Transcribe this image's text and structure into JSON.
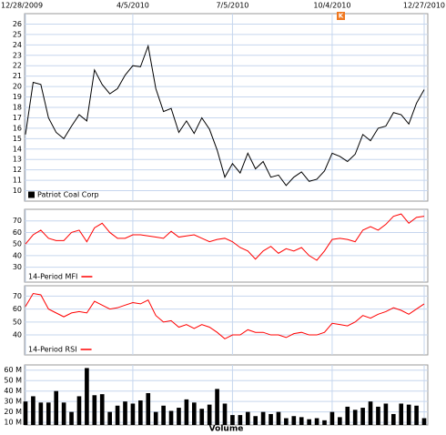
{
  "chart_data": [
    {
      "type": "line",
      "annotation": "K",
      "categories": [
        "12/28/2009",
        null,
        null,
        null,
        null,
        null,
        null,
        null,
        null,
        null,
        null,
        null,
        null,
        null,
        "4/5/2010",
        null,
        null,
        null,
        null,
        null,
        null,
        null,
        null,
        null,
        null,
        null,
        null,
        "7/5/2010",
        null,
        null,
        null,
        null,
        null,
        null,
        null,
        null,
        null,
        null,
        null,
        null,
        "10/4/2010",
        null,
        null,
        null,
        null,
        null,
        null,
        null,
        null,
        null,
        null,
        null,
        "12/27/2010"
      ],
      "series": [
        {
          "name": "Patriot Coal Corp",
          "color": "#000000",
          "legend_symbol": "square",
          "values": [
            15.4,
            20.4,
            20.2,
            17,
            15.6,
            15,
            16.2,
            17.3,
            16.7,
            21.6,
            20.2,
            19.3,
            19.8,
            21.1,
            22,
            21.9,
            23.9,
            19.8,
            17.6,
            17.9,
            15.6,
            16.7,
            15.5,
            17,
            15.9,
            13.9,
            11.3,
            12.6,
            11.7,
            13.6,
            12.1,
            12.8,
            11.3,
            11.5,
            10.5,
            11.3,
            11.8,
            10.9,
            11.1,
            11.9,
            13.6,
            13.3,
            12.8,
            13.5,
            15.4,
            14.8,
            16,
            16.2,
            17.5,
            17.3,
            16.4,
            18.4,
            19.7
          ]
        }
      ],
      "ylim": [
        9,
        27
      ],
      "yticks": [
        10,
        11,
        12,
        13,
        14,
        15,
        16,
        17,
        18,
        19,
        20,
        21,
        22,
        23,
        24,
        25,
        26
      ],
      "grid": true
    },
    {
      "type": "line",
      "series": [
        {
          "name": "14-Period MFI",
          "color": "#ff0000",
          "legend_symbol": "line",
          "values": [
            50,
            58,
            62,
            55,
            53,
            53,
            60,
            62,
            52,
            64,
            68,
            60,
            55,
            55,
            58,
            58,
            57,
            56,
            55,
            61,
            56,
            57,
            58,
            55,
            52,
            54,
            55,
            52,
            47,
            44,
            37,
            44,
            48,
            42,
            46,
            44,
            47,
            40,
            36,
            44,
            54,
            55,
            54,
            52,
            62,
            65,
            62,
            67,
            74,
            76,
            68,
            73,
            74
          ]
        }
      ],
      "ylim": [
        25,
        80
      ],
      "yticks": [
        30,
        40,
        50,
        60,
        70
      ],
      "grid": true
    },
    {
      "type": "line",
      "series": [
        {
          "name": "14-Period RSI",
          "color": "#ff0000",
          "legend_symbol": "line",
          "values": [
            62,
            72,
            71,
            60,
            57,
            54,
            57,
            58,
            57,
            66,
            63,
            60,
            61,
            63,
            65,
            64,
            67,
            55,
            50,
            51,
            46,
            48,
            45,
            48,
            46,
            42,
            37,
            40,
            40,
            44,
            42,
            42,
            40,
            40,
            38,
            41,
            42,
            40,
            40,
            42,
            49,
            48,
            47,
            50,
            55,
            53,
            56,
            58,
            61,
            59,
            56,
            60,
            64
          ]
        }
      ],
      "ylim": [
        33,
        78
      ],
      "yticks": [
        40,
        50,
        60,
        70
      ],
      "grid": true
    },
    {
      "type": "bar",
      "xlabel": "Volume",
      "color": "#000000",
      "values": [
        30,
        35,
        29,
        29,
        40,
        29,
        20,
        35,
        62,
        36,
        37,
        20,
        26,
        30,
        28,
        31,
        38,
        20,
        26,
        21,
        24,
        32,
        29,
        23,
        27,
        42,
        28,
        17,
        17,
        20,
        16,
        20,
        18,
        20,
        14,
        16,
        15,
        13,
        14,
        12,
        20,
        15,
        25,
        22,
        24,
        30,
        25,
        28,
        18,
        28,
        27,
        26,
        14
      ],
      "ylim": [
        7.5,
        65
      ],
      "yticks": [
        {
          "value": 10,
          "label": "10 M"
        },
        {
          "value": 20,
          "label": "20 M"
        },
        {
          "value": 30,
          "label": "30 M"
        },
        {
          "value": 40,
          "label": "40 M"
        },
        {
          "value": 50,
          "label": "50 M"
        },
        {
          "value": 60,
          "label": "60 M"
        }
      ],
      "grid": true
    }
  ]
}
